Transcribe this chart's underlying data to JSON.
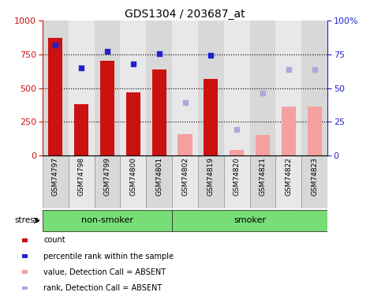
{
  "title": "GDS1304 / 203687_at",
  "samples": [
    "GSM74797",
    "GSM74798",
    "GSM74799",
    "GSM74800",
    "GSM74801",
    "GSM74802",
    "GSM74819",
    "GSM74820",
    "GSM74821",
    "GSM74822",
    "GSM74823"
  ],
  "count_present": [
    870,
    380,
    700,
    470,
    640,
    null,
    565,
    null,
    null,
    null,
    null
  ],
  "count_absent": [
    null,
    null,
    null,
    null,
    null,
    155,
    null,
    40,
    150,
    360,
    360
  ],
  "rank_present": [
    82,
    65,
    77.5,
    68,
    75.5,
    null,
    74.5,
    null,
    null,
    null,
    null
  ],
  "rank_absent": [
    null,
    null,
    null,
    null,
    null,
    39,
    null,
    19,
    46,
    64,
    64
  ],
  "group_split": 5,
  "ylim_left": [
    0,
    1000
  ],
  "ylim_right": [
    0,
    100
  ],
  "yticks_left": [
    0,
    250,
    500,
    750,
    1000
  ],
  "yticks_right": [
    0,
    25,
    50,
    75,
    100
  ],
  "color_bar_present": "#cc1111",
  "color_bar_absent": "#f4a0a0",
  "color_rank_present": "#2222cc",
  "color_rank_absent": "#aaaadd",
  "col_bg_even": "#d8d8d8",
  "col_bg_odd": "#e8e8e8",
  "bg_group": "#77dd77",
  "legend_items": [
    {
      "label": "count",
      "color": "#cc1111"
    },
    {
      "label": "percentile rank within the sample",
      "color": "#2222cc"
    },
    {
      "label": "value, Detection Call = ABSENT",
      "color": "#f4a0a0"
    },
    {
      "label": "rank, Detection Call = ABSENT",
      "color": "#aaaadd"
    }
  ]
}
